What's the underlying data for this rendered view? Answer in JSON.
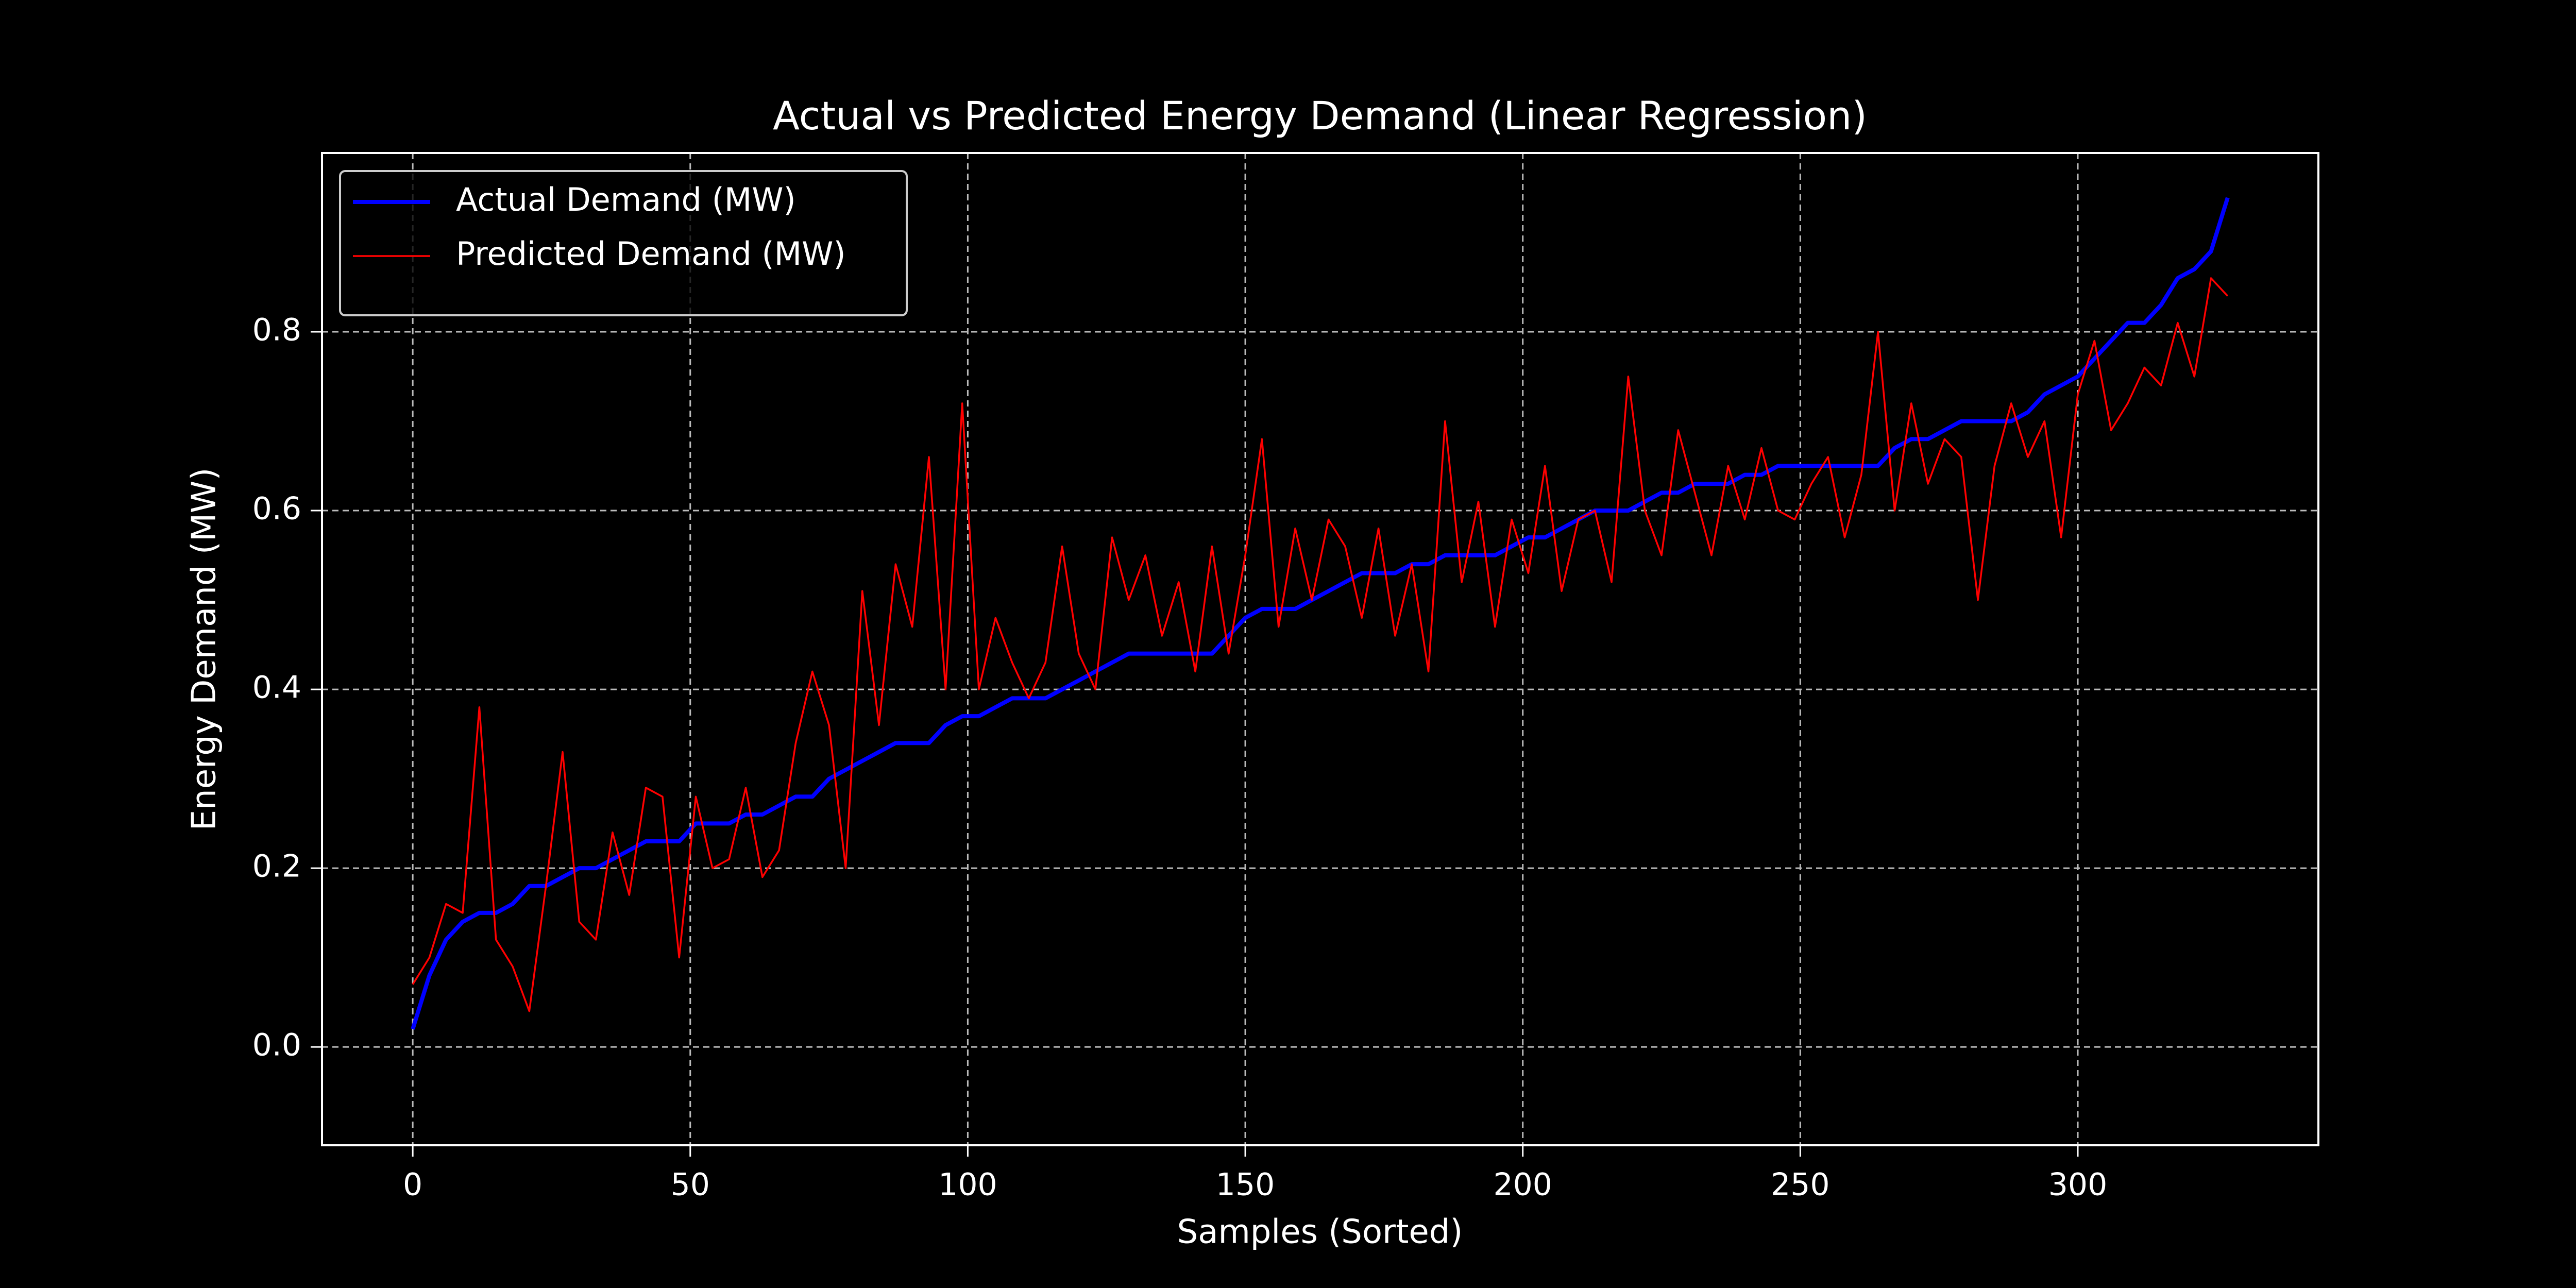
{
  "chart_data": {
    "type": "line",
    "title": "Actual vs Predicted Energy Demand (Linear Regression)",
    "x_label": "Samples (Sorted)",
    "y_label": "Energy Demand (MW)",
    "x": [
      0,
      3,
      6,
      9,
      12,
      15,
      18,
      21,
      24,
      27,
      30,
      33,
      36,
      39,
      42,
      45,
      48,
      51,
      54,
      57,
      60,
      63,
      66,
      69,
      72,
      75,
      78,
      81,
      84,
      87,
      90,
      93,
      96,
      99,
      102,
      105,
      108,
      111,
      114,
      117,
      120,
      123,
      126,
      129,
      132,
      135,
      138,
      141,
      144,
      147,
      150,
      153,
      156,
      159,
      162,
      165,
      168,
      171,
      174,
      177,
      180,
      183,
      186,
      189,
      192,
      195,
      198,
      201,
      204,
      207,
      210,
      213,
      216,
      219,
      222,
      225,
      228,
      231,
      234,
      237,
      240,
      243,
      246,
      249,
      252,
      255,
      258,
      261,
      264,
      267,
      270,
      273,
      276,
      279,
      282,
      285,
      288,
      291,
      294,
      297,
      300,
      303,
      306,
      309,
      312,
      315,
      318,
      321,
      324,
      327
    ],
    "series": [
      {
        "name": "Actual Demand (MW)",
        "color": "#0000ff",
        "width": 8,
        "values": [
          0.02,
          0.08,
          0.12,
          0.14,
          0.15,
          0.15,
          0.16,
          0.18,
          0.18,
          0.19,
          0.2,
          0.2,
          0.21,
          0.22,
          0.23,
          0.23,
          0.23,
          0.25,
          0.25,
          0.25,
          0.26,
          0.26,
          0.27,
          0.28,
          0.28,
          0.3,
          0.31,
          0.32,
          0.33,
          0.34,
          0.34,
          0.34,
          0.36,
          0.37,
          0.37,
          0.38,
          0.39,
          0.39,
          0.39,
          0.4,
          0.41,
          0.42,
          0.43,
          0.44,
          0.44,
          0.44,
          0.44,
          0.44,
          0.44,
          0.46,
          0.48,
          0.49,
          0.49,
          0.49,
          0.5,
          0.51,
          0.52,
          0.53,
          0.53,
          0.53,
          0.54,
          0.54,
          0.55,
          0.55,
          0.55,
          0.55,
          0.56,
          0.57,
          0.57,
          0.58,
          0.59,
          0.6,
          0.6,
          0.6,
          0.61,
          0.62,
          0.62,
          0.63,
          0.63,
          0.63,
          0.64,
          0.64,
          0.65,
          0.65,
          0.65,
          0.65,
          0.65,
          0.65,
          0.65,
          0.67,
          0.68,
          0.68,
          0.69,
          0.7,
          0.7,
          0.7,
          0.7,
          0.71,
          0.73,
          0.74,
          0.75,
          0.77,
          0.79,
          0.81,
          0.81,
          0.83,
          0.86,
          0.87,
          0.89,
          0.95
        ]
      },
      {
        "name": "Predicted Demand (MW)",
        "color": "#ff0000",
        "width": 3.5,
        "values": [
          0.07,
          0.1,
          0.16,
          0.15,
          0.38,
          0.12,
          0.09,
          0.04,
          0.18,
          0.33,
          0.14,
          0.12,
          0.24,
          0.17,
          0.29,
          0.28,
          0.1,
          0.28,
          0.2,
          0.21,
          0.29,
          0.19,
          0.22,
          0.34,
          0.42,
          0.36,
          0.2,
          0.51,
          0.36,
          0.54,
          0.47,
          0.66,
          0.4,
          0.72,
          0.4,
          0.48,
          0.43,
          0.39,
          0.43,
          0.56,
          0.44,
          0.4,
          0.57,
          0.5,
          0.55,
          0.46,
          0.52,
          0.42,
          0.56,
          0.44,
          0.55,
          0.68,
          0.47,
          0.58,
          0.5,
          0.59,
          0.56,
          0.48,
          0.58,
          0.46,
          0.54,
          0.42,
          0.7,
          0.52,
          0.61,
          0.47,
          0.59,
          0.53,
          0.65,
          0.51,
          0.59,
          0.6,
          0.52,
          0.75,
          0.6,
          0.55,
          0.69,
          0.62,
          0.55,
          0.65,
          0.59,
          0.67,
          0.6,
          0.59,
          0.63,
          0.66,
          0.57,
          0.64,
          0.8,
          0.6,
          0.72,
          0.63,
          0.68,
          0.66,
          0.5,
          0.65,
          0.72,
          0.66,
          0.7,
          0.57,
          0.73,
          0.79,
          0.69,
          0.72,
          0.76,
          0.74,
          0.81,
          0.75,
          0.86,
          0.84
        ]
      }
    ],
    "xlim": [
      -16.35,
      343.35
    ],
    "ylim": [
      -0.11,
      1.0
    ],
    "xticks": [
      0,
      50,
      100,
      150,
      200,
      250,
      300
    ],
    "yticks": [
      {
        "value": 0,
        "label": "0.0"
      },
      0.2,
      0.4,
      0.6,
      0.8
    ],
    "grid": true,
    "legend": "upper-left"
  }
}
